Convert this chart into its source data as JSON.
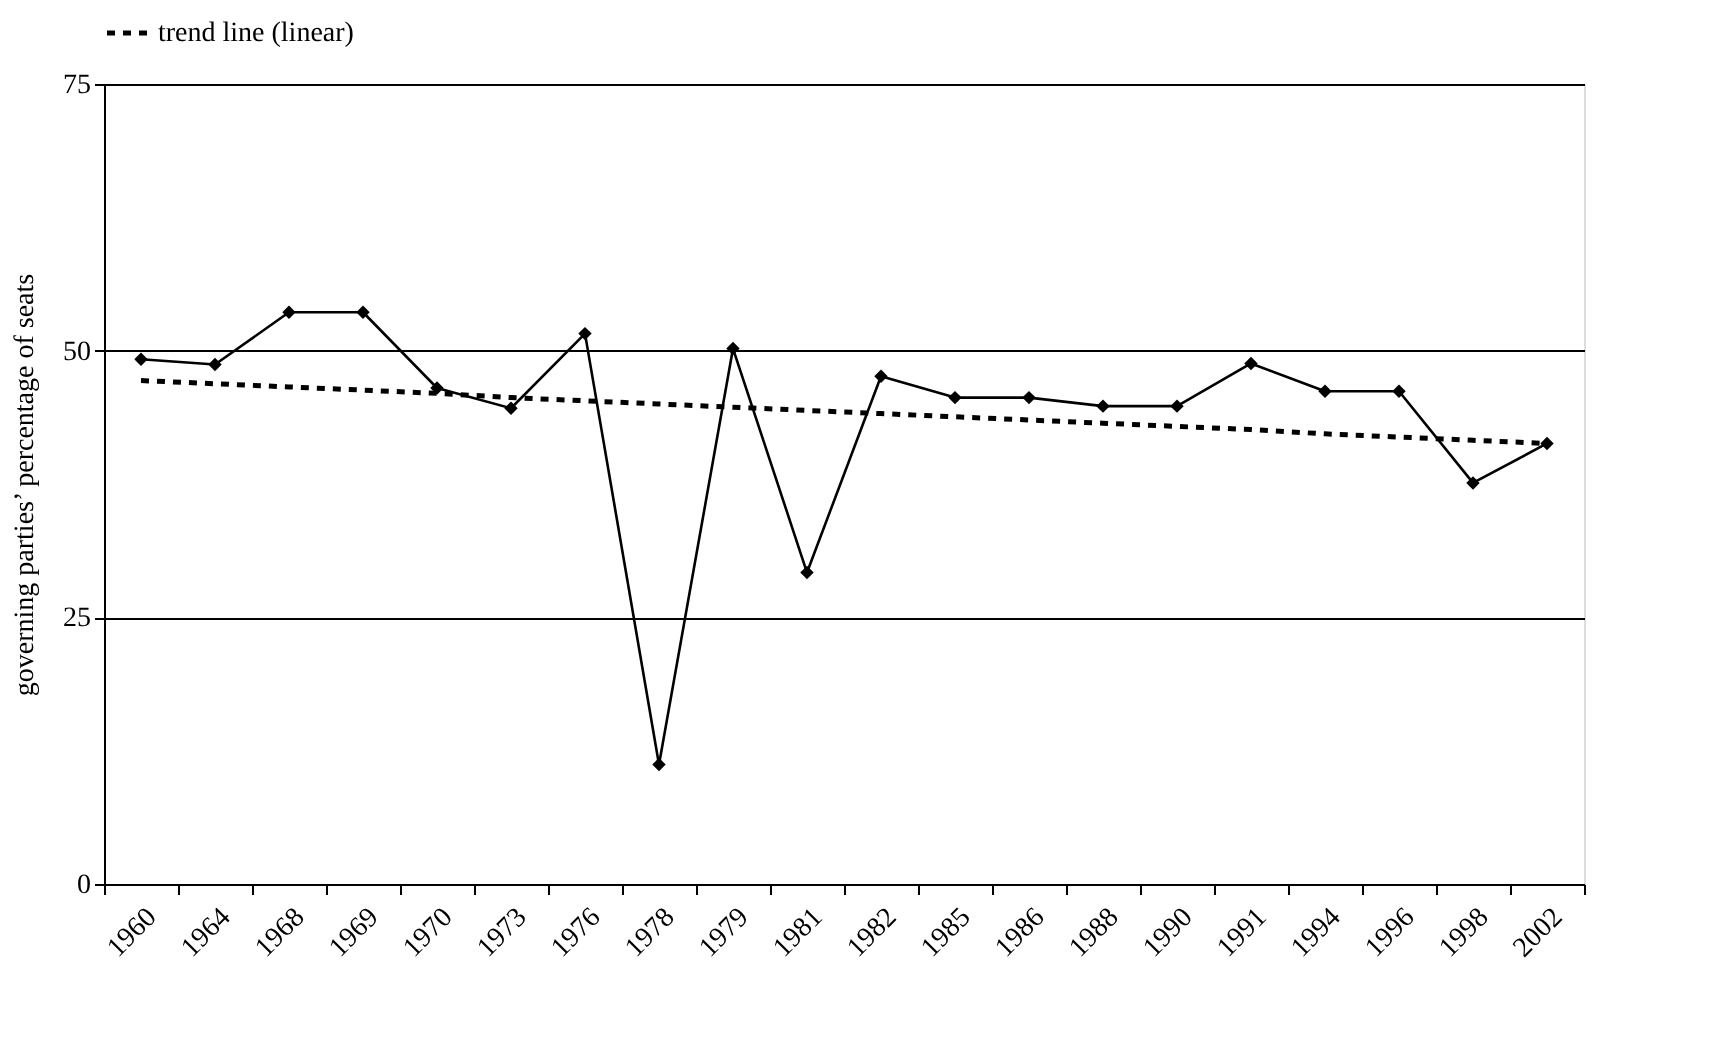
{
  "chart_data": {
    "type": "line",
    "ylabel": "governing parties’ percentage of seats",
    "categories": [
      "1960",
      "1964",
      "1968",
      "1969",
      "1970",
      "1973",
      "1976",
      "1978",
      "1979",
      "1981",
      "1982",
      "1985",
      "1986",
      "1988",
      "1990",
      "1991",
      "1994",
      "1996",
      "1998",
      "2002"
    ],
    "series": [
      {
        "color": "#000000",
        "marker": "diamond",
        "line_style": "solid",
        "values": [
          49.2,
          48.7,
          53.6,
          53.6,
          46.5,
          44.6,
          51.6,
          11.2,
          50.2,
          29.2,
          47.6,
          45.6,
          45.6,
          44.8,
          44.8,
          48.8,
          46.2,
          46.2,
          37.6,
          41.3
        ]
      },
      {
        "name": "trend line (linear)",
        "type": "line",
        "color": "#000000",
        "marker": "none",
        "line_style": "dashed",
        "values": [
          47.2,
          46.9,
          46.6,
          46.3,
          46.0,
          45.6,
          45.3,
          45.0,
          44.7,
          44.4,
          44.1,
          43.8,
          43.5,
          43.2,
          42.9,
          42.6,
          42.2,
          41.9,
          41.6,
          41.3
        ]
      }
    ],
    "ylim": [
      0,
      75
    ],
    "yticks": [
      0,
      25,
      50,
      75
    ],
    "grid": "y",
    "legend": "top"
  }
}
